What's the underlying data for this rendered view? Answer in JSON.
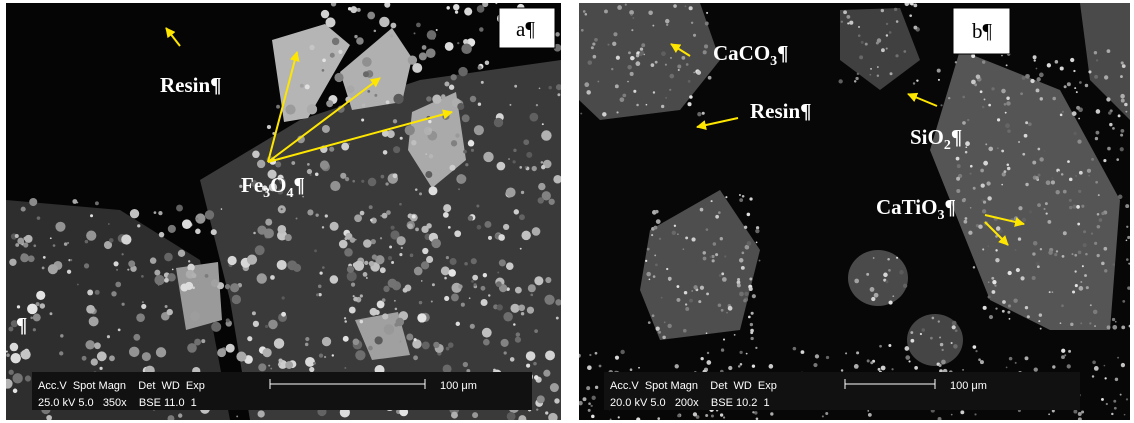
{
  "panel_a": {
    "tag": "a¶",
    "resin": "Resin¶",
    "fe3o4": [
      "Fe",
      "3",
      "O",
      "4",
      "¶"
    ],
    "pilcrow": "¶",
    "scale": {
      "header": "Acc.V  Spot Magn    Det  WD  Exp",
      "values": "25.0 kV 5.0   350x    BSE 11.0  1",
      "bar": "100 μm"
    }
  },
  "panel_b": {
    "tag": "b¶",
    "caco3": [
      "CaCO",
      "3",
      "¶"
    ],
    "resin": "Resin¶",
    "sio2": [
      "SiO",
      "2",
      "¶"
    ],
    "catio3": [
      "CaTiO",
      "3",
      "¶"
    ],
    "scale": {
      "header": "Acc.V  Spot Magn    Det  WD  Exp",
      "values": "20.0 kV 5.0   200x    BSE 10.2  1",
      "bar": "100 μm"
    }
  }
}
